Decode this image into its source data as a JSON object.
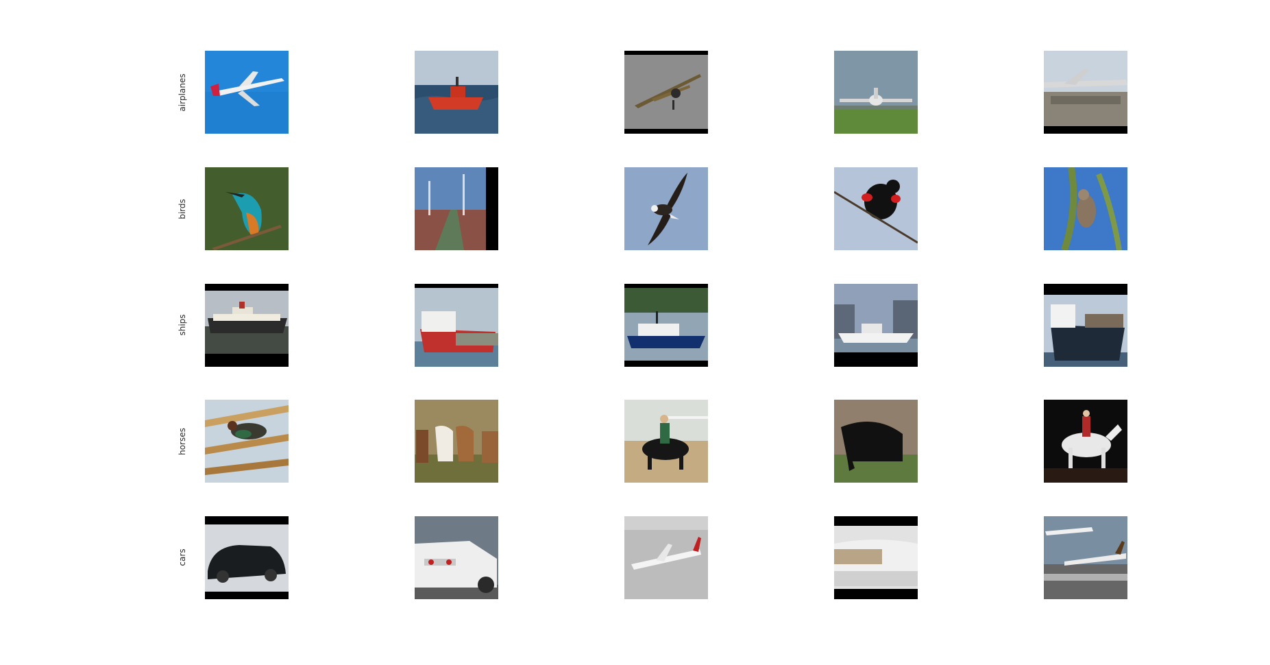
{
  "rows": [
    {
      "label": "airplanes"
    },
    {
      "label": "birds"
    },
    {
      "label": "ships"
    },
    {
      "label": "horses"
    },
    {
      "label": "cars"
    }
  ],
  "images": [
    [
      "airplane-blue-sky",
      "ship-red-sea",
      "biplane-gray",
      "airliner-runway",
      "jet-tarmac"
    ],
    [
      "kingfisher-branch",
      "ship-deck",
      "eagle-flying",
      "red-winged-blackbird",
      "bird-tree"
    ],
    [
      "cruise-ship",
      "cargo-ship-red",
      "fishing-boat",
      "white-ship-city",
      "cargo-ship-dark"
    ],
    [
      "bird-reeds",
      "two-horses",
      "rider-dark-horse",
      "black-horse-grazing",
      "white-horse-rider"
    ],
    [
      "black-car-garage",
      "white-car-rear",
      "airliner-airport",
      "white-car-front",
      "airliners-airport"
    ]
  ]
}
